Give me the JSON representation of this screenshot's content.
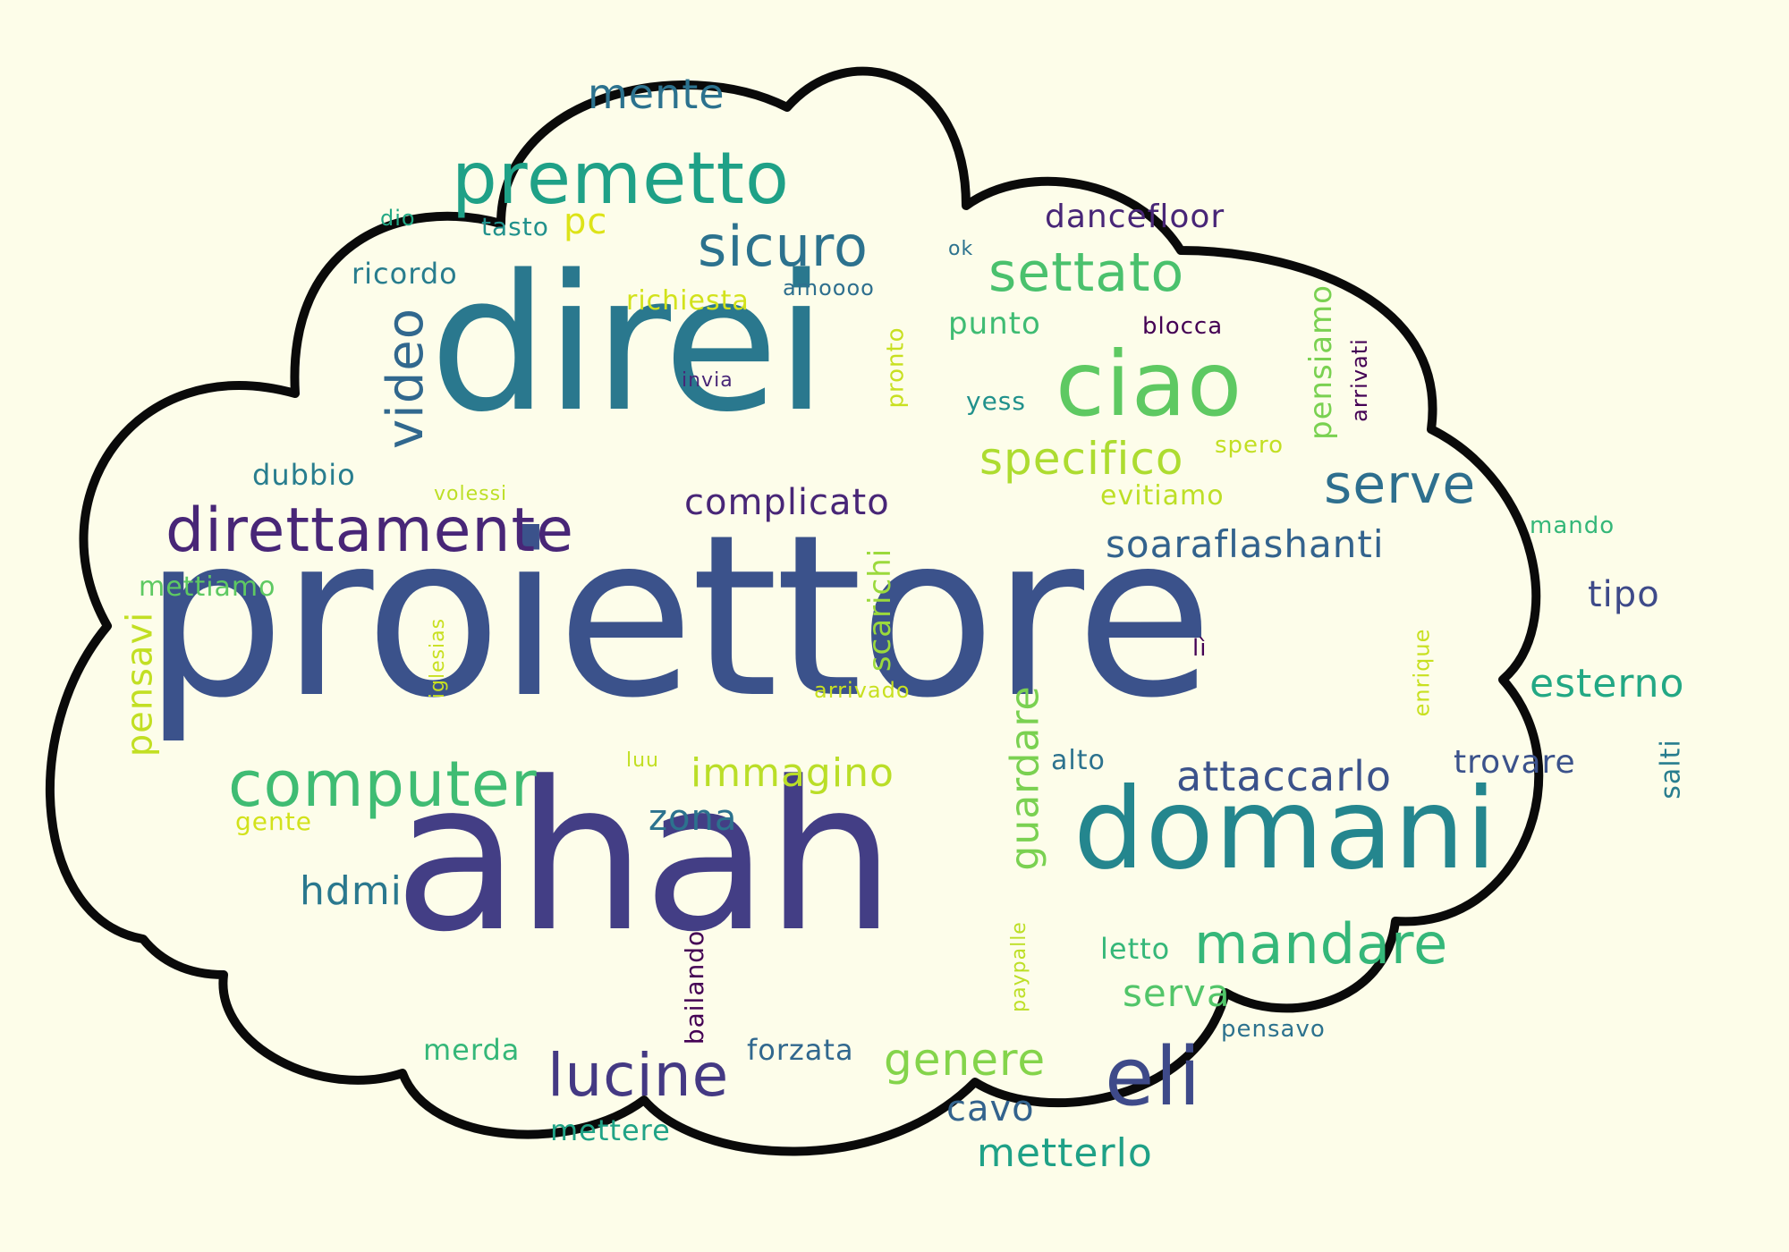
{
  "palette": {
    "background": "#fdfde9",
    "cloud_fill": "#fdfdea",
    "cloud_outline": "#0a0a0a",
    "purple": "#482677",
    "dark_blue": "#414487",
    "blue": "#3b528b",
    "steel": "#33638d",
    "teal": "#287d8e",
    "green_teal": "#21918c",
    "green": "#22a884",
    "mint": "#44bf70",
    "light_green": "#7ad151",
    "yellow_green": "#bddf26",
    "yellow": "#d9e021"
  },
  "words": {
    "proiettore": "proiettore",
    "ahah": "ahah",
    "direi": "direi",
    "domani": "domani",
    "ciao": "ciao",
    "premetto": "premetto",
    "direttamente": "direttamente",
    "computer": "computer",
    "eli": "eli",
    "sicuro": "sicuro",
    "settato": "settato",
    "mandare": "mandare",
    "lucine": "lucine",
    "serve": "serve",
    "video": "video",
    "specifico": "specifico",
    "attaccarlo": "attaccarlo",
    "immagino": "immagino",
    "genere": "genere",
    "soaraflashanti": "soaraflashanti",
    "complicato": "complicato",
    "guardare": "guardare",
    "mente": "mente",
    "esterno": "esterno",
    "metterlo": "metterlo",
    "hdmi": "hdmi",
    "zona": "zona",
    "cavo": "cavo",
    "tipo": "tipo",
    "trovare": "trovare",
    "serva": "serva",
    "pensavi": "pensavi",
    "dancefloor": "dancefloor",
    "scarichi": "scarichi",
    "punto": "punto",
    "pensiamo": "pensiamo",
    "richiesta": "richiesta",
    "ricordo": "ricordo",
    "dubbio": "dubbio",
    "mettiamo": "mettiamo",
    "evitiamo": "evitiamo",
    "forzata": "forzata",
    "merda": "merda",
    "mettere": "mettere",
    "letto": "letto",
    "pc": "pc",
    "tasto": "tasto",
    "alto": "alto",
    "yess": "yess",
    "salti": "salti",
    "bailando": "bailando",
    "mando": "mando",
    "pensavo": "pensavo",
    "blocca": "blocca",
    "arrivati": "arrivati",
    "pronto": "pronto",
    "spero": "spero",
    "amoooo": "amoooo",
    "invia": "invia",
    "volessi": "volessi",
    "iglesias": "iglesias",
    "arrivado": "arrivado",
    "gente": "gente",
    "luu": "luu",
    "enrique": "enrique",
    "paypalle": "paypalle",
    "dio": "dio",
    "ok": "ok",
    "li": "lì"
  }
}
